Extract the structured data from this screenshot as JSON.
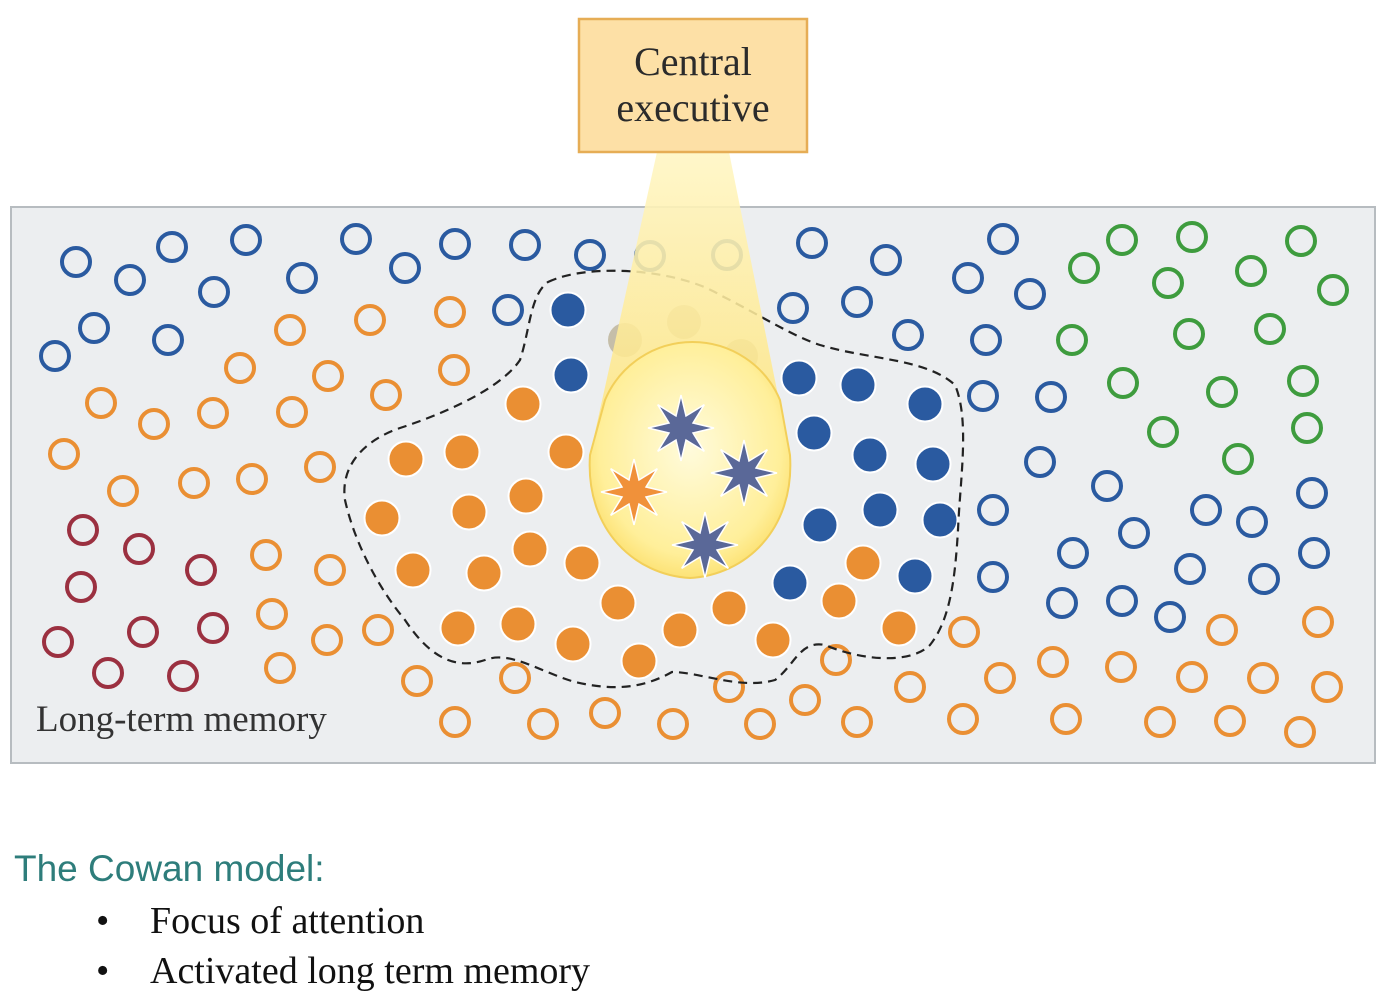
{
  "diagram": {
    "central_executive": [
      "Central",
      "executive"
    ],
    "long_term_memory_label": "Long-term memory"
  },
  "caption": {
    "title": "The Cowan model:",
    "bullets": [
      "Focus of attention",
      "Activated long term memory"
    ]
  },
  "colors": {
    "blue": "#2a5aa0",
    "orange": "#ea8f33",
    "green": "#3e9c3e",
    "maroon": "#9b3040",
    "star_blue": "#5a6898",
    "star_orange": "#f0913a",
    "box_fill": "#fde0a6",
    "box_border": "#e6ad55",
    "panel_fill": "#eceef0",
    "panel_border": "#b7bcc0",
    "caption": "#2e7d7b"
  }
}
